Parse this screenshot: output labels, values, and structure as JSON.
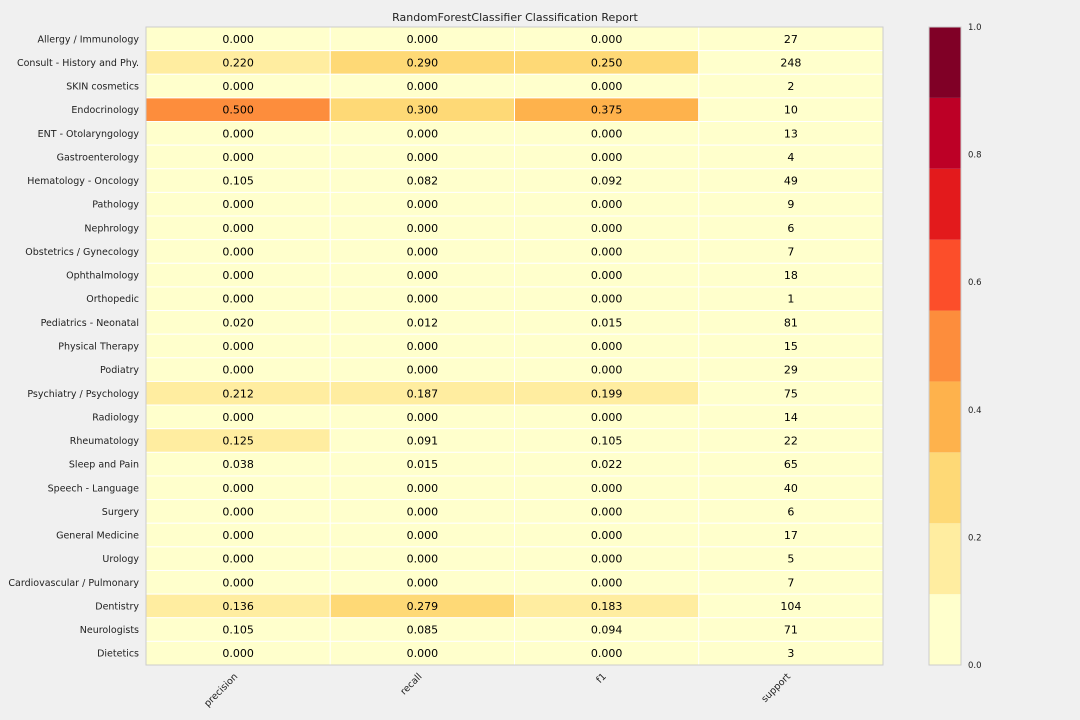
{
  "chart_data": {
    "type": "heatmap",
    "title": "RandomForestClassifier Classification Report",
    "columns": [
      "precision",
      "recall",
      "f1",
      "support"
    ],
    "rows": [
      "Allergy / Immunology",
      "Consult - History and Phy.",
      "SKIN cosmetics",
      "Endocrinology",
      "ENT - Otolaryngology",
      "Gastroenterology",
      "Hematology - Oncology",
      "Pathology",
      "Nephrology",
      "Obstetrics / Gynecology",
      "Ophthalmology",
      "Orthopedic",
      "Pediatrics - Neonatal",
      "Physical Therapy",
      "Podiatry",
      "Psychiatry / Psychology",
      "Radiology",
      "Rheumatology",
      "Sleep and Pain",
      "Speech - Language",
      "Surgery",
      "General Medicine",
      "Urology",
      "Cardiovascular / Pulmonary",
      "Dentistry",
      "Neurologists",
      "Dietetics"
    ],
    "values": [
      [
        "0.000",
        "0.000",
        "0.000",
        "27"
      ],
      [
        "0.220",
        "0.290",
        "0.250",
        "248"
      ],
      [
        "0.000",
        "0.000",
        "0.000",
        "2"
      ],
      [
        "0.500",
        "0.300",
        "0.375",
        "10"
      ],
      [
        "0.000",
        "0.000",
        "0.000",
        "13"
      ],
      [
        "0.000",
        "0.000",
        "0.000",
        "4"
      ],
      [
        "0.105",
        "0.082",
        "0.092",
        "49"
      ],
      [
        "0.000",
        "0.000",
        "0.000",
        "9"
      ],
      [
        "0.000",
        "0.000",
        "0.000",
        "6"
      ],
      [
        "0.000",
        "0.000",
        "0.000",
        "7"
      ],
      [
        "0.000",
        "0.000",
        "0.000",
        "18"
      ],
      [
        "0.000",
        "0.000",
        "0.000",
        "1"
      ],
      [
        "0.020",
        "0.012",
        "0.015",
        "81"
      ],
      [
        "0.000",
        "0.000",
        "0.000",
        "15"
      ],
      [
        "0.000",
        "0.000",
        "0.000",
        "29"
      ],
      [
        "0.212",
        "0.187",
        "0.199",
        "75"
      ],
      [
        "0.000",
        "0.000",
        "0.000",
        "14"
      ],
      [
        "0.125",
        "0.091",
        "0.105",
        "22"
      ],
      [
        "0.038",
        "0.015",
        "0.022",
        "65"
      ],
      [
        "0.000",
        "0.000",
        "0.000",
        "40"
      ],
      [
        "0.000",
        "0.000",
        "0.000",
        "6"
      ],
      [
        "0.000",
        "0.000",
        "0.000",
        "17"
      ],
      [
        "0.000",
        "0.000",
        "0.000",
        "5"
      ],
      [
        "0.000",
        "0.000",
        "0.000",
        "7"
      ],
      [
        "0.136",
        "0.279",
        "0.183",
        "104"
      ],
      [
        "0.105",
        "0.085",
        "0.094",
        "71"
      ],
      [
        "0.000",
        "0.000",
        "0.000",
        "3"
      ]
    ],
    "colorbar": {
      "range": [
        0.0,
        1.0
      ],
      "tick_labels": [
        "0.0",
        "0.2",
        "0.4",
        "0.6",
        "0.8",
        "1.0"
      ],
      "tick_values": [
        0.0,
        0.2,
        0.4,
        0.6,
        0.8,
        1.0
      ],
      "colors": [
        "#ffffcc",
        "#ffeda0",
        "#fed976",
        "#feb24c",
        "#fd8d3c",
        "#fc4e2a",
        "#e31a1c",
        "#bd0026",
        "#800026"
      ]
    },
    "support_cell_color": "#ffffcc",
    "grid": false,
    "legend": "colorbar-right"
  }
}
